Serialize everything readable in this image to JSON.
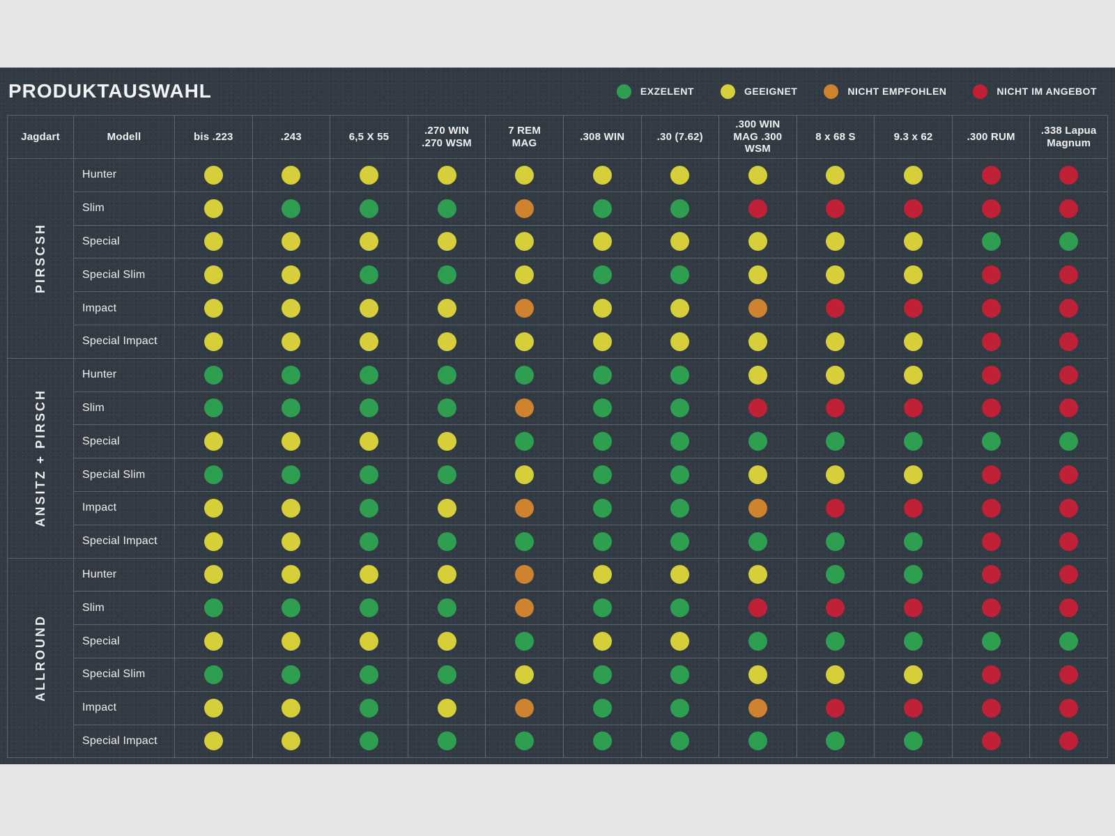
{
  "title": "PRODUKTAUSWAHL",
  "legend": {
    "items": [
      {
        "key": "G",
        "label": "EXZELENT",
        "color": "#2e9e51"
      },
      {
        "key": "Y",
        "label": "GEEIGNET",
        "color": "#d6cf3a"
      },
      {
        "key": "O",
        "label": "NICHT EMPFOHLEN",
        "color": "#d0832e"
      },
      {
        "key": "R",
        "label": "NICHT IM ANGEBOT",
        "color": "#c02136"
      }
    ]
  },
  "chart_data": {
    "type": "heatmap",
    "title": "PRODUKTAUSWAHL",
    "jagdart_header": "Jagdart",
    "modell_header": "Modell",
    "columns": [
      "bis .223",
      ".243",
      "6,5 X 55",
      ".270 WIN\n.270 WSM",
      "7 REM\nMAG",
      ".308 WIN",
      ".30 (7.62)",
      ".300 WIN\nMAG .300\nWSM",
      "8 x 68 S",
      "9.3 x 62",
      ".300 RUM",
      ".338 Lapua\nMagnum"
    ],
    "rating_scale": {
      "G": "EXZELENT",
      "Y": "GEEIGNET",
      "O": "NICHT EMPFOHLEN",
      "R": "NICHT IM ANGEBOT"
    },
    "colors": {
      "G": "#2e9e51",
      "Y": "#d6cf3a",
      "O": "#d0832e",
      "R": "#c02136"
    },
    "groups": [
      {
        "jagdart": "PIRSCSH",
        "rows": [
          {
            "modell": "Hunter",
            "ratings": [
              "Y",
              "Y",
              "Y",
              "Y",
              "Y",
              "Y",
              "Y",
              "Y",
              "Y",
              "Y",
              "R",
              "R"
            ]
          },
          {
            "modell": "Slim",
            "ratings": [
              "Y",
              "G",
              "G",
              "G",
              "O",
              "G",
              "G",
              "R",
              "R",
              "R",
              "R",
              "R"
            ]
          },
          {
            "modell": "Special",
            "ratings": [
              "Y",
              "Y",
              "Y",
              "Y",
              "Y",
              "Y",
              "Y",
              "Y",
              "Y",
              "Y",
              "G",
              "G"
            ]
          },
          {
            "modell": "Special Slim",
            "ratings": [
              "Y",
              "Y",
              "G",
              "G",
              "Y",
              "G",
              "G",
              "Y",
              "Y",
              "Y",
              "R",
              "R"
            ]
          },
          {
            "modell": "Impact",
            "ratings": [
              "Y",
              "Y",
              "Y",
              "Y",
              "O",
              "Y",
              "Y",
              "O",
              "R",
              "R",
              "R",
              "R"
            ]
          },
          {
            "modell": "Special Impact",
            "ratings": [
              "Y",
              "Y",
              "Y",
              "Y",
              "Y",
              "Y",
              "Y",
              "Y",
              "Y",
              "Y",
              "R",
              "R"
            ]
          }
        ]
      },
      {
        "jagdart": "ANSITZ + PIRSCH",
        "rows": [
          {
            "modell": "Hunter",
            "ratings": [
              "G",
              "G",
              "G",
              "G",
              "G",
              "G",
              "G",
              "Y",
              "Y",
              "Y",
              "R",
              "R"
            ]
          },
          {
            "modell": "Slim",
            "ratings": [
              "G",
              "G",
              "G",
              "G",
              "O",
              "G",
              "G",
              "R",
              "R",
              "R",
              "R",
              "R"
            ]
          },
          {
            "modell": "Special",
            "ratings": [
              "Y",
              "Y",
              "Y",
              "Y",
              "G",
              "G",
              "G",
              "G",
              "G",
              "G",
              "G",
              "G"
            ]
          },
          {
            "modell": "Special Slim",
            "ratings": [
              "G",
              "G",
              "G",
              "G",
              "Y",
              "G",
              "G",
              "Y",
              "Y",
              "Y",
              "R",
              "R"
            ]
          },
          {
            "modell": "Impact",
            "ratings": [
              "Y",
              "Y",
              "G",
              "Y",
              "O",
              "G",
              "G",
              "O",
              "R",
              "R",
              "R",
              "R"
            ]
          },
          {
            "modell": "Special Impact",
            "ratings": [
              "Y",
              "Y",
              "G",
              "G",
              "G",
              "G",
              "G",
              "G",
              "G",
              "G",
              "R",
              "R"
            ]
          }
        ]
      },
      {
        "jagdart": "ALLROUND",
        "rows": [
          {
            "modell": "Hunter",
            "ratings": [
              "Y",
              "Y",
              "Y",
              "Y",
              "O",
              "Y",
              "Y",
              "Y",
              "G",
              "G",
              "R",
              "R"
            ]
          },
          {
            "modell": "Slim",
            "ratings": [
              "G",
              "G",
              "G",
              "G",
              "O",
              "G",
              "G",
              "R",
              "R",
              "R",
              "R",
              "R"
            ]
          },
          {
            "modell": "Special",
            "ratings": [
              "Y",
              "Y",
              "Y",
              "Y",
              "G",
              "Y",
              "Y",
              "G",
              "G",
              "G",
              "G",
              "G"
            ]
          },
          {
            "modell": "Special Slim",
            "ratings": [
              "G",
              "G",
              "G",
              "G",
              "Y",
              "G",
              "G",
              "Y",
              "Y",
              "Y",
              "R",
              "R"
            ]
          },
          {
            "modell": "Impact",
            "ratings": [
              "Y",
              "Y",
              "G",
              "Y",
              "O",
              "G",
              "G",
              "O",
              "R",
              "R",
              "R",
              "R"
            ]
          },
          {
            "modell": "Special Impact",
            "ratings": [
              "Y",
              "Y",
              "G",
              "G",
              "G",
              "G",
              "G",
              "G",
              "G",
              "G",
              "R",
              "R"
            ]
          }
        ]
      }
    ]
  }
}
